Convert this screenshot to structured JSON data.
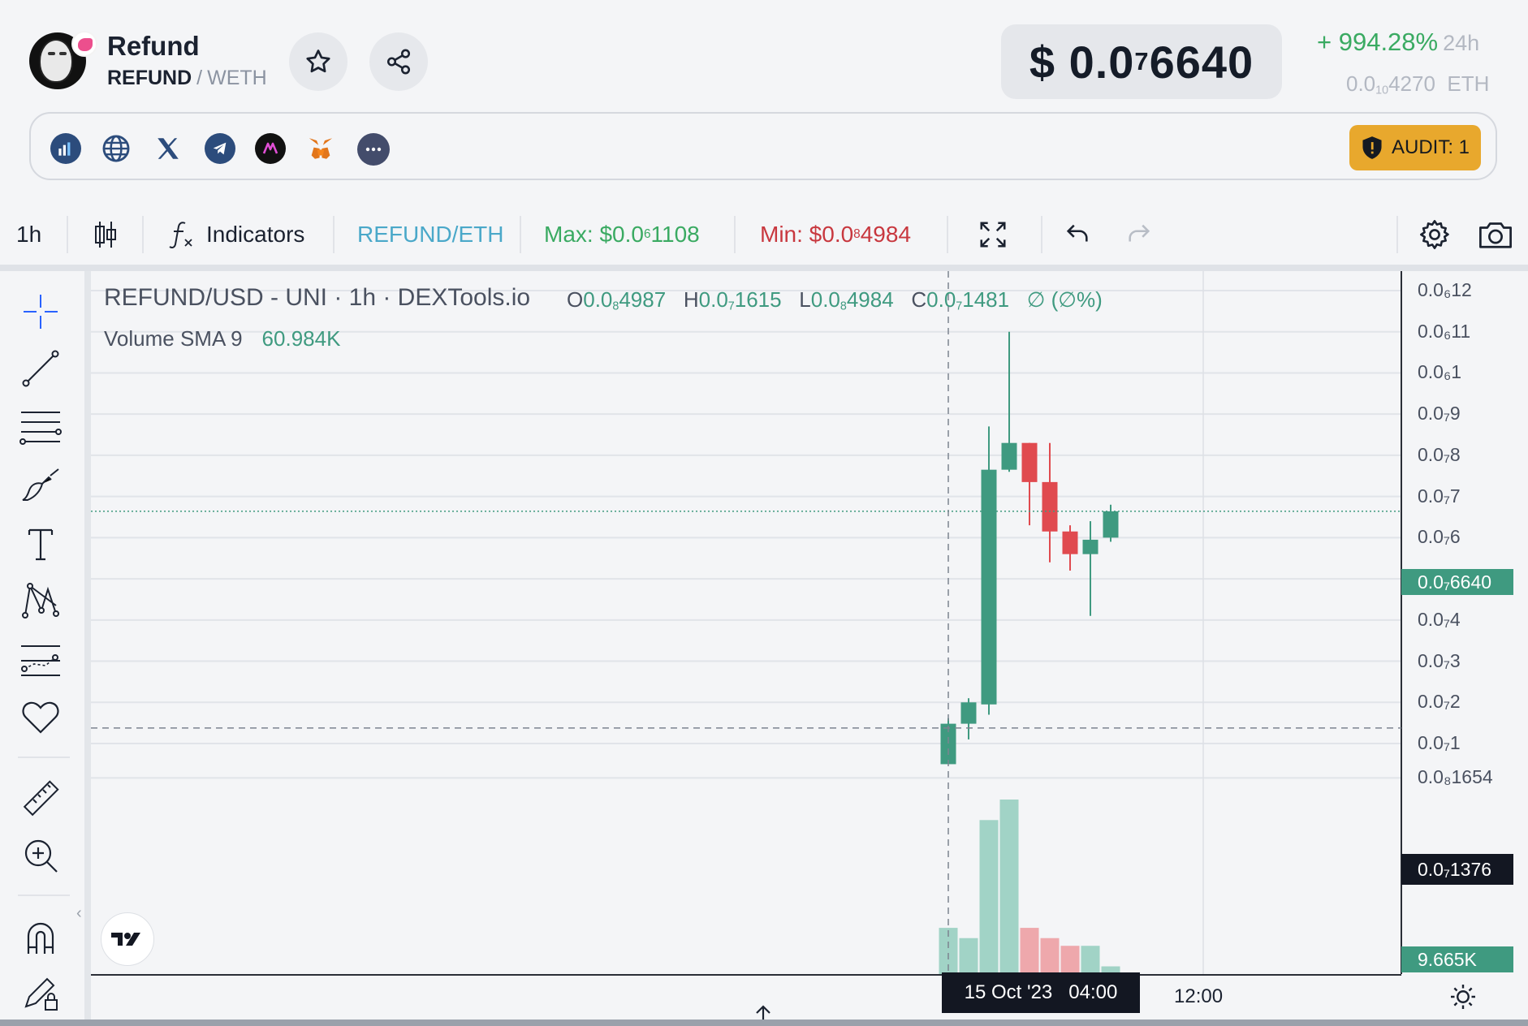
{
  "token": {
    "name": "Refund",
    "symbol": "REFUND",
    "quote": "WETH"
  },
  "price": {
    "prefix": "$ 0.0",
    "sub": "7",
    "digits": "6640",
    "change": "+ 994.28%",
    "period": "24h",
    "eth_prefix": "0.0",
    "eth_sub": "10",
    "eth_digits": "4270",
    "eth_unit": "ETH"
  },
  "links": {
    "icons": [
      "dextools-icon",
      "globe-icon",
      "x-icon",
      "telegram-icon",
      "dexview-icon",
      "metamask-icon",
      "more-icon"
    ],
    "audit_label": "AUDIT: 1"
  },
  "toolbar": {
    "interval": "1h",
    "indicators": "Indicators",
    "pair": "REFUND/ETH",
    "max_prefix": "Max: $0.0",
    "max_sub": "6",
    "max_digits": "1108",
    "min_prefix": "Min: $0.0",
    "min_sub": "8",
    "min_digits": "4984"
  },
  "chart_legend": {
    "title": "REFUND/USD - UNI · 1h · DEXTools.io",
    "o_label": "O",
    "o_prefix": "0.0",
    "o_sub": "8",
    "o_digits": "4987",
    "h_label": "H",
    "h_prefix": "0.0",
    "h_sub": "7",
    "h_digits": "1615",
    "l_label": "L",
    "l_prefix": "0.0",
    "l_sub": "8",
    "l_digits": "4984",
    "c_label": "C",
    "c_prefix": "0.0",
    "c_sub": "7",
    "c_digits": "1481",
    "change": "∅ (∅%)",
    "volume_label": "Volume SMA 9",
    "volume_value": "60.984K"
  },
  "price_tags": {
    "current": "0.0₇6640",
    "crosshair": "0.0₇1376",
    "volume": "9.665K"
  },
  "time_axis": {
    "crosshair_date": "15 Oct '23",
    "crosshair_time": "04:00",
    "tick": "12:00"
  },
  "colors": {
    "up": "#3f9a80",
    "down": "#e04a4f",
    "up_volume": "#a1d3c6",
    "down_volume": "#eea8ac",
    "accent_blue": "#4aa8c9",
    "max_green": "#3aaa62",
    "min_red": "#c8383f",
    "audit": "#e8a82d"
  },
  "chart_data": {
    "type": "candlestick",
    "title": "REFUND/USD - UNI · 1h · DEXTools.io",
    "y_tick_labels": [
      "0.0₆12",
      "0.0₆11",
      "0.0₆1",
      "0.0₇9",
      "0.0₇8",
      "0.0₇7",
      "0.0₇6",
      "0.0₇5",
      "0.0₇4",
      "0.0₇3",
      "0.0₇2",
      "0.0₇1",
      "0.0₈1654"
    ],
    "y_tick_values": [
      1.2e-06,
      1.1e-06,
      1e-06,
      9e-07,
      8e-07,
      7e-07,
      6e-07,
      5e-07,
      4e-07,
      3e-07,
      2e-07,
      1e-07,
      1.654e-08
    ],
    "ylim": [
      1.654e-08,
      1.2e-06
    ],
    "x_tick_labels": [
      "12:00"
    ],
    "candles": [
      {
        "o": 4.987e-08,
        "h": 1.615e-07,
        "l": 4.984e-08,
        "c": 1.481e-07,
        "vol": 90000.0
      },
      {
        "o": 1.481e-07,
        "h": 2.1e-07,
        "l": 1.1e-07,
        "c": 2e-07,
        "vol": 70000.0
      },
      {
        "o": 1.95e-07,
        "h": 8.7e-07,
        "l": 1.7e-07,
        "c": 7.65e-07,
        "vol": 300000.0
      },
      {
        "o": 7.65e-07,
        "h": 1.1e-06,
        "l": 7.6e-07,
        "c": 8.3e-07,
        "vol": 340000.0
      },
      {
        "o": 8.3e-07,
        "h": 8.3e-07,
        "l": 6.3e-07,
        "c": 7.35e-07,
        "vol": 90000.0
      },
      {
        "o": 7.35e-07,
        "h": 8.3e-07,
        "l": 5.4e-07,
        "c": 6.15e-07,
        "vol": 70000.0
      },
      {
        "o": 6.15e-07,
        "h": 6.3e-07,
        "l": 5.2e-07,
        "c": 5.6e-07,
        "vol": 55000.0
      },
      {
        "o": 5.6e-07,
        "h": 6.4e-07,
        "l": 4.1e-07,
        "c": 5.95e-07,
        "vol": 55000.0
      },
      {
        "o": 6e-07,
        "h": 6.8e-07,
        "l": 5.9e-07,
        "c": 6.64e-07,
        "vol": 15000.0
      }
    ],
    "current_price": 6.64e-07,
    "crosshair_price": 1.376e-07
  }
}
